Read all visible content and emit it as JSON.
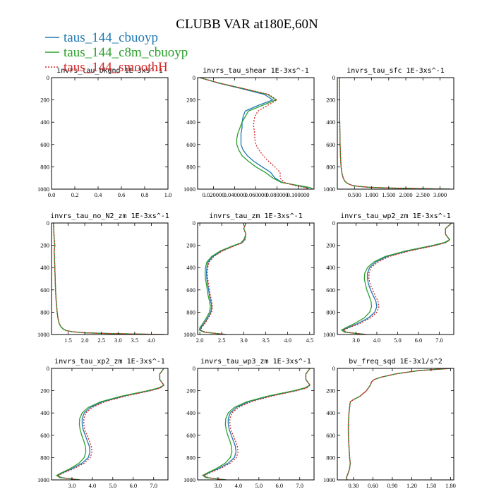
{
  "title": "CLUBB VAR at180E,60N",
  "legend": [
    {
      "name": "taus_144_cbuoyp",
      "color": "#1f77b4",
      "dash": ""
    },
    {
      "name": "taus_144_c8m_cbuoyp",
      "color": "#2ca02c",
      "dash": ""
    },
    {
      "name": "taus_144_smoothH",
      "color": "#d62728",
      "dash": "2,2"
    }
  ],
  "chart_data": [
    {
      "type": "line",
      "title": "invrs_tau_bkgnd   1E-3xs^-1",
      "xlim": [
        0,
        1.0
      ],
      "ylim": [
        0,
        1000
      ],
      "y_reversed": true,
      "xticks": [
        "0.0",
        "0.2",
        "0.4",
        "0.6",
        "0.8",
        "1.0"
      ],
      "xtick_values": [
        0,
        0.2,
        0.4,
        0.6,
        0.8,
        1.0
      ],
      "yticks": [
        "0",
        "200",
        "400",
        "600",
        "800",
        "1000"
      ],
      "y": [
        0,
        1000
      ],
      "series": []
    },
    {
      "type": "line",
      "title": "invrs_tau_shear   1E-3xs^-1",
      "xlim": [
        0.005,
        0.115
      ],
      "ylim": [
        0,
        1000
      ],
      "y_reversed": true,
      "xticks": [
        "0.020000",
        "0.040000",
        "0.060000",
        "0.080000",
        "0.100000"
      ],
      "xtick_values": [
        0.02,
        0.04,
        0.06,
        0.08,
        0.1
      ],
      "yticks": [
        "0",
        "200",
        "400",
        "600",
        "800",
        "1000"
      ],
      "y": [
        0,
        50,
        100,
        150,
        200,
        250,
        300,
        350,
        400,
        450,
        500,
        550,
        600,
        650,
        700,
        750,
        800,
        850,
        900,
        940,
        970,
        985,
        1000
      ],
      "series": [
        {
          "values": [
            0.007,
            0.025,
            0.047,
            0.068,
            0.076,
            0.062,
            0.05,
            0.048,
            0.047,
            0.047,
            0.046,
            0.046,
            0.046,
            0.048,
            0.052,
            0.058,
            0.066,
            0.074,
            0.078,
            0.085,
            0.1,
            0.108,
            0.11
          ]
        },
        {
          "values": [
            0.007,
            0.026,
            0.049,
            0.071,
            0.079,
            0.066,
            0.053,
            0.05,
            0.047,
            0.045,
            0.043,
            0.042,
            0.042,
            0.044,
            0.047,
            0.053,
            0.06,
            0.069,
            0.076,
            0.084,
            0.102,
            0.111,
            0.114
          ]
        },
        {
          "values": [
            0.007,
            0.026,
            0.049,
            0.072,
            0.08,
            0.071,
            0.062,
            0.059,
            0.058,
            0.058,
            0.059,
            0.059,
            0.06,
            0.063,
            0.067,
            0.072,
            0.078,
            0.083,
            0.083,
            0.087,
            0.098,
            0.106,
            0.11
          ]
        }
      ]
    },
    {
      "type": "line",
      "title": "invrs_tau_sfc   1E-3xs^-1",
      "xlim": [
        0,
        3.4
      ],
      "ylim": [
        0,
        1000
      ],
      "y_reversed": true,
      "xticks": [
        "0.500",
        "1.000",
        "1.500",
        "2.000",
        "2.500",
        "3.000"
      ],
      "xtick_values": [
        0.5,
        1.0,
        1.5,
        2.0,
        2.5,
        3.0
      ],
      "yticks": [
        "0",
        "200",
        "400",
        "600",
        "800",
        "1000"
      ],
      "y": [
        0,
        200,
        400,
        600,
        700,
        800,
        850,
        900,
        930,
        950,
        965,
        975,
        983,
        990,
        995,
        1000
      ],
      "series": [
        {
          "values": [
            0.06,
            0.065,
            0.07,
            0.08,
            0.09,
            0.11,
            0.13,
            0.17,
            0.22,
            0.3,
            0.42,
            0.6,
            0.9,
            1.5,
            2.3,
            3.3
          ]
        },
        {
          "values": [
            0.06,
            0.065,
            0.07,
            0.08,
            0.09,
            0.11,
            0.13,
            0.17,
            0.22,
            0.3,
            0.42,
            0.6,
            0.9,
            1.5,
            2.3,
            3.3
          ]
        },
        {
          "values": [
            0.06,
            0.065,
            0.07,
            0.08,
            0.09,
            0.11,
            0.13,
            0.17,
            0.22,
            0.3,
            0.42,
            0.6,
            0.9,
            1.5,
            2.3,
            3.3
          ]
        }
      ]
    },
    {
      "type": "line",
      "title": "invrs_tau_no_N2_zm   1E-3xs^-1",
      "xlim": [
        1.0,
        4.5
      ],
      "ylim": [
        0,
        1000
      ],
      "y_reversed": true,
      "xticks": [
        "1.5",
        "2.0",
        "2.5",
        "3.0",
        "3.5",
        "4.0"
      ],
      "xtick_values": [
        1.5,
        2.0,
        2.5,
        3.0,
        3.5,
        4.0
      ],
      "yticks": [
        "0",
        "200",
        "400",
        "600",
        "800",
        "1000"
      ],
      "y": [
        0,
        150,
        200,
        250,
        400,
        600,
        700,
        800,
        850,
        900,
        930,
        950,
        965,
        975,
        985,
        992,
        1000
      ],
      "series": [
        {
          "values": [
            1.06,
            1.08,
            1.1,
            1.08,
            1.1,
            1.12,
            1.14,
            1.17,
            1.19,
            1.23,
            1.28,
            1.35,
            1.45,
            1.62,
            2.0,
            2.8,
            4.4
          ]
        },
        {
          "values": [
            1.06,
            1.08,
            1.1,
            1.08,
            1.1,
            1.12,
            1.14,
            1.17,
            1.19,
            1.23,
            1.28,
            1.35,
            1.45,
            1.62,
            2.0,
            2.8,
            4.4
          ]
        },
        {
          "values": [
            1.06,
            1.08,
            1.1,
            1.08,
            1.1,
            1.12,
            1.14,
            1.17,
            1.19,
            1.23,
            1.28,
            1.35,
            1.45,
            1.62,
            2.0,
            2.8,
            4.4
          ]
        }
      ]
    },
    {
      "type": "line",
      "title": "invrs_tau_zm   1E-3xs^-1",
      "xlim": [
        1.95,
        4.6
      ],
      "ylim": [
        0,
        1000
      ],
      "y_reversed": true,
      "xticks": [
        "2.0",
        "2.5",
        "3.0",
        "3.5",
        "4.0",
        "4.5"
      ],
      "xtick_values": [
        2.0,
        2.5,
        3.0,
        3.5,
        4.0,
        4.5
      ],
      "yticks": [
        "0",
        "200",
        "400",
        "600",
        "800",
        "1000"
      ],
      "y": [
        0,
        50,
        100,
        150,
        180,
        200,
        250,
        300,
        350,
        400,
        450,
        500,
        550,
        600,
        650,
        700,
        750,
        800,
        850,
        900,
        940,
        960,
        980,
        1000
      ],
      "series": [
        {
          "values": [
            3.05,
            3.0,
            3.05,
            3.02,
            2.95,
            2.8,
            2.5,
            2.3,
            2.19,
            2.16,
            2.15,
            2.16,
            2.18,
            2.2,
            2.22,
            2.25,
            2.27,
            2.25,
            2.18,
            2.1,
            2.02,
            2.01,
            2.12,
            2.6
          ]
        },
        {
          "values": [
            3.05,
            3.0,
            3.05,
            3.0,
            2.93,
            2.78,
            2.47,
            2.27,
            2.16,
            2.13,
            2.12,
            2.13,
            2.15,
            2.17,
            2.19,
            2.22,
            2.24,
            2.22,
            2.15,
            2.07,
            2.0,
            1.99,
            2.1,
            2.6
          ]
        },
        {
          "values": [
            3.05,
            3.0,
            3.05,
            3.03,
            2.96,
            2.82,
            2.52,
            2.32,
            2.21,
            2.18,
            2.17,
            2.18,
            2.2,
            2.22,
            2.24,
            2.27,
            2.29,
            2.27,
            2.2,
            2.12,
            2.04,
            2.02,
            2.13,
            2.6
          ]
        }
      ]
    },
    {
      "type": "line",
      "title": "invrs_tau_wp2_zm   1E-3xs^-1",
      "xlim": [
        2.1,
        7.7
      ],
      "ylim": [
        0,
        1000
      ],
      "y_reversed": true,
      "xticks": [
        "3.0",
        "4.0",
        "5.0",
        "6.0",
        "7.0"
      ],
      "xtick_values": [
        3.0,
        4.0,
        5.0,
        6.0,
        7.0
      ],
      "yticks": [
        "0",
        "200",
        "400",
        "600",
        "800",
        "1000"
      ],
      "y": [
        0,
        50,
        100,
        150,
        175,
        200,
        250,
        300,
        350,
        400,
        450,
        500,
        550,
        600,
        650,
        700,
        750,
        800,
        850,
        900,
        940,
        960,
        980,
        1000
      ],
      "series": [
        {
          "values": [
            7.6,
            7.3,
            7.3,
            7.5,
            7.3,
            6.8,
            5.5,
            4.5,
            3.95,
            3.65,
            3.55,
            3.55,
            3.6,
            3.7,
            3.82,
            3.95,
            4.0,
            3.9,
            3.6,
            3.1,
            2.6,
            2.35,
            2.5,
            3.5
          ]
        },
        {
          "values": [
            7.6,
            7.3,
            7.3,
            7.5,
            7.25,
            6.7,
            5.4,
            4.4,
            3.85,
            3.55,
            3.42,
            3.4,
            3.45,
            3.52,
            3.62,
            3.72,
            3.75,
            3.65,
            3.4,
            2.95,
            2.5,
            2.3,
            2.45,
            3.5
          ]
        },
        {
          "values": [
            7.6,
            7.3,
            7.3,
            7.5,
            7.35,
            6.85,
            5.6,
            4.6,
            4.05,
            3.72,
            3.62,
            3.62,
            3.68,
            3.8,
            3.92,
            4.05,
            4.1,
            4.0,
            3.7,
            3.2,
            2.65,
            2.4,
            2.55,
            3.5
          ]
        }
      ]
    },
    {
      "type": "line",
      "title": "invrs_tau_xp2_zm   1E-3xs^-1",
      "xlim": [
        2.0,
        7.7
      ],
      "ylim": [
        0,
        1000
      ],
      "y_reversed": true,
      "xticks": [
        "3.0",
        "4.0",
        "5.0",
        "6.0",
        "7.0"
      ],
      "xtick_values": [
        3.0,
        4.0,
        5.0,
        6.0,
        7.0
      ],
      "yticks": [
        "0",
        "200",
        "400",
        "600",
        "800",
        "1000"
      ],
      "y": [
        0,
        50,
        100,
        150,
        175,
        200,
        250,
        300,
        350,
        400,
        450,
        500,
        550,
        600,
        650,
        700,
        750,
        800,
        850,
        900,
        940,
        960,
        980,
        1000
      ],
      "series": [
        {
          "values": [
            7.5,
            7.3,
            7.3,
            7.5,
            7.3,
            6.8,
            5.5,
            4.5,
            3.9,
            3.6,
            3.5,
            3.5,
            3.55,
            3.65,
            3.75,
            3.85,
            3.88,
            3.8,
            3.5,
            3.0,
            2.5,
            2.3,
            2.45,
            3.4
          ]
        },
        {
          "values": [
            7.5,
            7.3,
            7.3,
            7.5,
            7.25,
            6.7,
            5.4,
            4.4,
            3.8,
            3.5,
            3.38,
            3.36,
            3.4,
            3.48,
            3.58,
            3.66,
            3.68,
            3.6,
            3.35,
            2.9,
            2.45,
            2.25,
            2.4,
            3.4
          ]
        },
        {
          "values": [
            7.5,
            7.3,
            7.3,
            7.5,
            7.35,
            6.85,
            5.6,
            4.6,
            4.0,
            3.68,
            3.58,
            3.58,
            3.62,
            3.74,
            3.85,
            3.95,
            3.98,
            3.9,
            3.6,
            3.1,
            2.55,
            2.35,
            2.5,
            3.4
          ]
        }
      ]
    },
    {
      "type": "line",
      "title": "invrs_tau_wp3_zm   1E-3xs^-1",
      "xlim": [
        2.0,
        7.7
      ],
      "ylim": [
        0,
        1000
      ],
      "y_reversed": true,
      "xticks": [
        "3.0",
        "4.0",
        "5.0",
        "6.0",
        "7.0"
      ],
      "xtick_values": [
        3.0,
        4.0,
        5.0,
        6.0,
        7.0
      ],
      "yticks": [
        "0",
        "200",
        "400",
        "600",
        "800",
        "1000"
      ],
      "y": [
        0,
        50,
        100,
        150,
        175,
        200,
        250,
        300,
        350,
        400,
        450,
        500,
        550,
        600,
        650,
        700,
        750,
        800,
        850,
        900,
        940,
        960,
        980,
        1000
      ],
      "series": [
        {
          "values": [
            7.5,
            7.3,
            7.3,
            7.5,
            7.3,
            6.8,
            5.5,
            4.5,
            3.9,
            3.6,
            3.5,
            3.5,
            3.55,
            3.65,
            3.75,
            3.85,
            3.88,
            3.8,
            3.5,
            3.0,
            2.5,
            2.3,
            2.45,
            3.4
          ]
        },
        {
          "values": [
            7.5,
            7.3,
            7.3,
            7.5,
            7.25,
            6.7,
            5.4,
            4.4,
            3.8,
            3.5,
            3.38,
            3.36,
            3.4,
            3.48,
            3.58,
            3.66,
            3.68,
            3.6,
            3.35,
            2.9,
            2.45,
            2.25,
            2.4,
            3.4
          ]
        },
        {
          "values": [
            7.5,
            7.3,
            7.3,
            7.5,
            7.35,
            6.85,
            5.6,
            4.6,
            4.0,
            3.68,
            3.58,
            3.58,
            3.62,
            3.74,
            3.85,
            3.95,
            3.98,
            3.9,
            3.6,
            3.1,
            2.55,
            2.35,
            2.5,
            3.4
          ]
        }
      ]
    },
    {
      "type": "line",
      "title": "bv_freq_sqd   1E-3x1/s^2",
      "xlim": [
        0.05,
        1.85
      ],
      "ylim": [
        0,
        1000
      ],
      "y_reversed": true,
      "xticks": [
        "0.30",
        "0.60",
        "0.90",
        "1.20",
        "1.50",
        "1.80"
      ],
      "xtick_values": [
        0.3,
        0.6,
        0.9,
        1.2,
        1.5,
        1.8
      ],
      "yticks": [
        "0",
        "200",
        "400",
        "600",
        "800",
        "1000"
      ],
      "y": [
        0,
        20,
        50,
        80,
        100,
        120,
        150,
        200,
        250,
        280,
        300,
        350,
        400,
        500,
        600,
        700,
        800,
        850,
        900,
        950,
        980,
        1000
      ],
      "series": [
        {
          "values": [
            1.8,
            1.3,
            0.95,
            0.72,
            0.62,
            0.58,
            0.56,
            0.5,
            0.4,
            0.3,
            0.25,
            0.24,
            0.23,
            0.22,
            0.22,
            0.23,
            0.24,
            0.25,
            0.24,
            0.21,
            0.19,
            0.2
          ]
        },
        {
          "values": [
            1.8,
            1.3,
            0.95,
            0.72,
            0.62,
            0.58,
            0.56,
            0.5,
            0.4,
            0.3,
            0.25,
            0.24,
            0.23,
            0.22,
            0.22,
            0.23,
            0.24,
            0.25,
            0.24,
            0.21,
            0.19,
            0.2
          ]
        },
        {
          "values": [
            1.8,
            1.3,
            0.95,
            0.72,
            0.62,
            0.58,
            0.56,
            0.5,
            0.4,
            0.3,
            0.25,
            0.24,
            0.23,
            0.22,
            0.22,
            0.23,
            0.24,
            0.25,
            0.24,
            0.21,
            0.19,
            0.2
          ]
        }
      ]
    }
  ]
}
